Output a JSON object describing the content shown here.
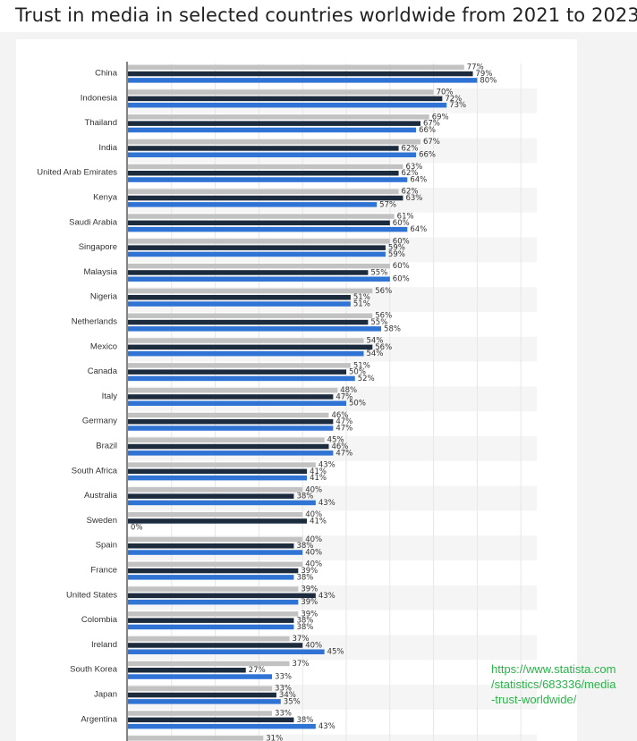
{
  "page": {
    "title": "Trust in media in selected countries worldwide from 2021 to 2023",
    "source_lines": [
      "https://www.statista.com",
      "/statistics/683336/media",
      "-trust-worldwide/"
    ]
  },
  "colors": {
    "series_2021": "#c2c2c2",
    "series_2022": "#1d2b3e",
    "series_2023": "#2f73d5",
    "row_stripe": "#f5f5f5",
    "grid": "#e6e6e6",
    "axis": "#333333",
    "label_text": "#333333",
    "source_text": "#2bb34a"
  },
  "chart_data": {
    "type": "bar",
    "orientation": "horizontal",
    "xlim": [
      0,
      100
    ],
    "grid": true,
    "categories": [
      "China",
      "Indonesia",
      "Thailand",
      "India",
      "United Arab Emirates",
      "Kenya",
      "Saudi Arabia",
      "Singapore",
      "Malaysia",
      "Nigeria",
      "Netherlands",
      "Mexico",
      "Canada",
      "Italy",
      "Germany",
      "Brazil",
      "South Africa",
      "Australia",
      "Sweden",
      "Spain",
      "France",
      "United States",
      "Colombia",
      "Ireland",
      "South Korea",
      "Japan",
      "Argentina",
      ""
    ],
    "series": [
      {
        "values": [
          77,
          70,
          69,
          67,
          63,
          62,
          61,
          60,
          60,
          56,
          56,
          54,
          51,
          48,
          46,
          45,
          43,
          40,
          40,
          40,
          40,
          39,
          39,
          37,
          37,
          33,
          33,
          31
        ]
      },
      {
        "values": [
          79,
          72,
          67,
          62,
          62,
          63,
          60,
          59,
          55,
          51,
          55,
          56,
          50,
          47,
          47,
          46,
          41,
          38,
          41,
          38,
          39,
          43,
          38,
          40,
          27,
          34,
          38,
          null
        ]
      },
      {
        "values": [
          80,
          73,
          66,
          66,
          64,
          57,
          64,
          59,
          60,
          51,
          58,
          54,
          52,
          50,
          47,
          47,
          41,
          43,
          0,
          40,
          38,
          39,
          38,
          45,
          33,
          35,
          43,
          null
        ]
      }
    ]
  }
}
